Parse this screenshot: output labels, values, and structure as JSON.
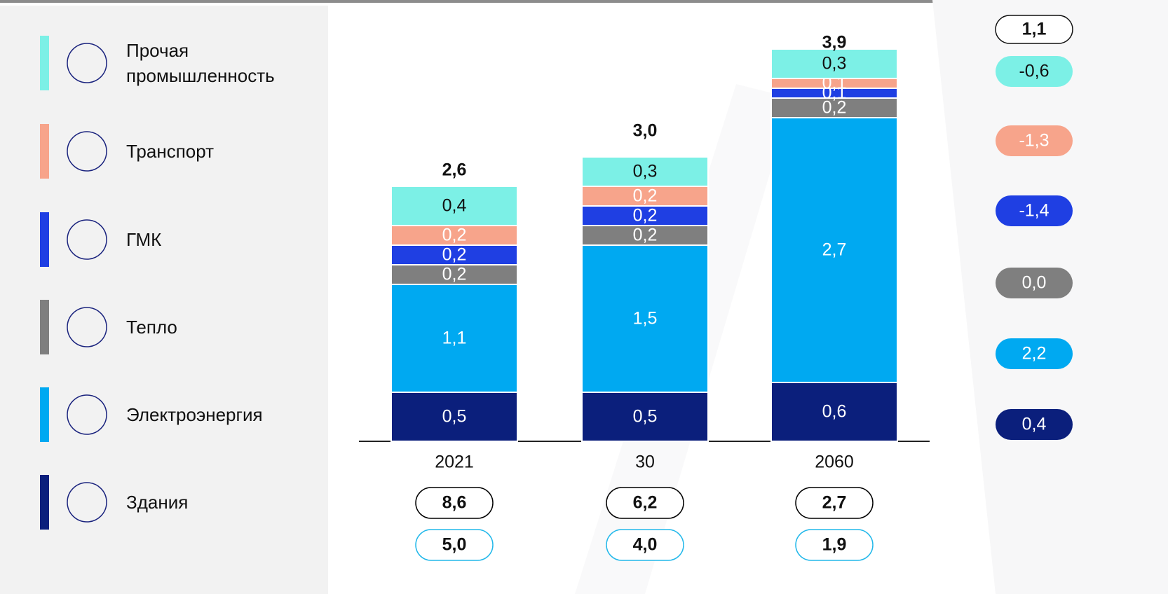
{
  "chart_data": {
    "type": "stacked_bar",
    "categories": [
      "2021",
      "30",
      "2060"
    ],
    "series": [
      {
        "name": "Здания",
        "color": "#0b1f7c",
        "values": [
          0.5,
          0.5,
          0.6
        ],
        "value_labels": [
          "0,5",
          "0,5",
          "0,6"
        ],
        "change": 0.4,
        "change_label": "0,4"
      },
      {
        "name": "Электроэнергия",
        "color": "#00a9f1",
        "values": [
          1.1,
          1.5,
          2.7
        ],
        "value_labels": [
          "1,1",
          "1,5",
          "2,7"
        ],
        "change": 2.2,
        "change_label": "2,2"
      },
      {
        "name": "Тепло",
        "color": "#7f7f7f",
        "values": [
          0.2,
          0.2,
          0.2
        ],
        "value_labels": [
          "0,2",
          "0,2",
          "0,2"
        ],
        "change": 0.0,
        "change_label": "0,0"
      },
      {
        "name": "ГМК",
        "color": "#1f3fe3",
        "values": [
          0.2,
          0.2,
          0.1
        ],
        "value_labels": [
          "0,2",
          "0,2",
          "0,1"
        ],
        "change": -1.4,
        "change_label": "-1,4"
      },
      {
        "name": "Транспорт",
        "color": "#f7a48b",
        "values": [
          0.2,
          0.2,
          0.1
        ],
        "value_labels": [
          "0,2",
          "0,2",
          "0,1"
        ],
        "change": -1.3,
        "change_label": "-1,3"
      },
      {
        "name": "Прочая промышленность",
        "color": "#7cf0e6",
        "values": [
          0.4,
          0.3,
          0.3
        ],
        "value_labels": [
          "0,4",
          "0,3",
          "0,3"
        ],
        "change": -0.6,
        "change_label": "-0,6"
      }
    ],
    "totals": [
      2.6,
      3.0,
      3.9
    ],
    "total_labels": [
      "2,6",
      "3,0",
      "3,9"
    ],
    "total_change": 1.1,
    "total_change_label": "1,1",
    "bottom_rows": [
      {
        "color": "#000000",
        "values": [
          8.6,
          6.2,
          2.7
        ],
        "value_labels": [
          "8,6",
          "6,2",
          "2,7"
        ]
      },
      {
        "color": "#22b8ea",
        "values": [
          5.0,
          4.0,
          1.9
        ],
        "value_labels": [
          "5,0",
          "4,0",
          "1,9"
        ]
      }
    ]
  }
}
